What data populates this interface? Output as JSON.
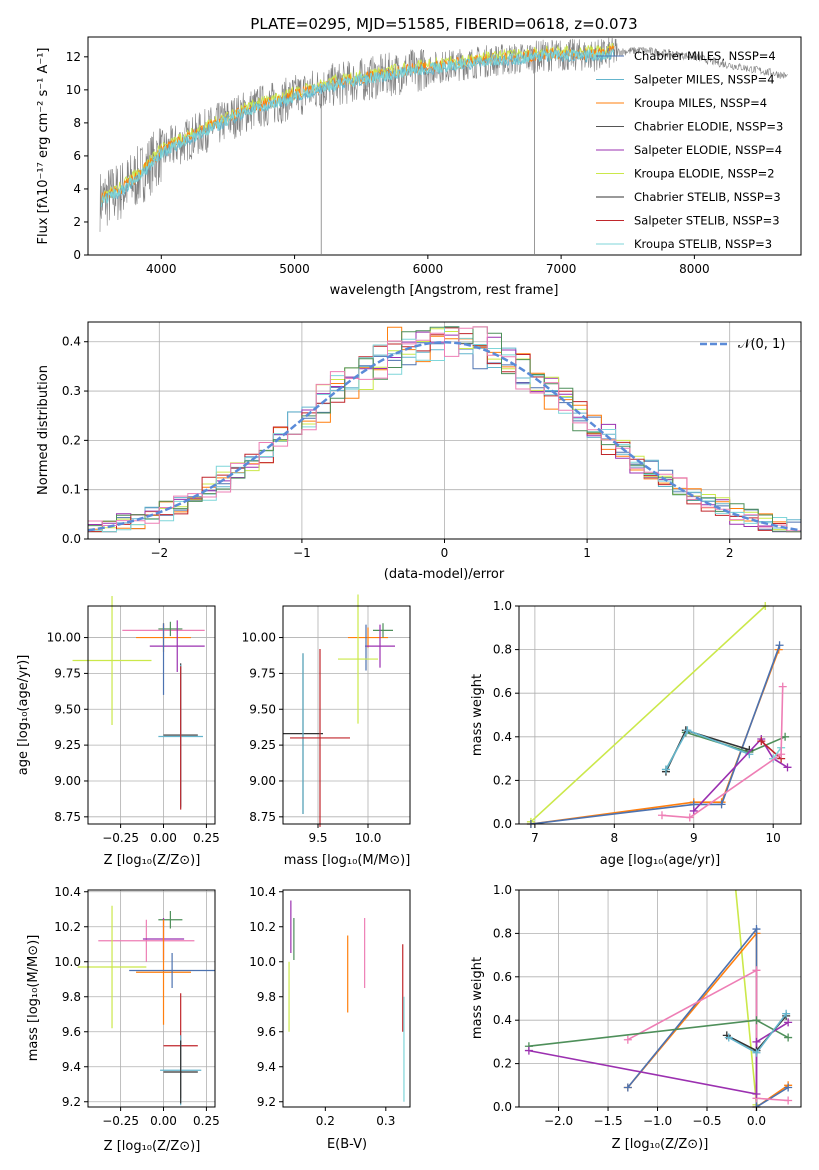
{
  "figure": {
    "title": "PLATE=0295, MJD=51585, FIBERID=0618, z=0.073"
  },
  "palette": {
    "Chabrier MILES": "#4c72b0",
    "Salpeter MILES": "#64b5cd",
    "Kroupa MILES": "#ff7f0e",
    "Chabrier ELODIE": "#555555",
    "Salpeter ELODIE": "#9b30b0",
    "Kroupa ELODIE": "#cbe84a",
    "Chabrier STELIB": "#333333",
    "Salpeter STELIB": "#c0262b",
    "Kroupa STELIB": "#7fd6d9",
    "green": "#4e8f5a",
    "pink": "#ee7eb5",
    "data_gray": "#808080",
    "normal_dash": "#5b8bd8"
  },
  "chart_data": [
    {
      "type": "line",
      "xlabel": "wavelength [Angstrom, rest frame]",
      "ylabel": "Flux [fλ10⁻¹⁷ erg cm⁻² s⁻¹ A⁻¹]",
      "xlim": [
        3450,
        8800
      ],
      "ylim": [
        0,
        13.2
      ],
      "xticks": [
        "4000",
        "5000",
        "6000",
        "7000",
        "8000"
      ],
      "yticks": [
        "0",
        "2",
        "4",
        "6",
        "8",
        "10",
        "12"
      ],
      "legend_position": "right",
      "legend": [
        "Chabrier MILES, NSSP=4",
        "Salpeter MILES, NSSP=4",
        "Kroupa MILES, NSSP=4",
        "Chabrier ELODIE, NSSP=3",
        "Salpeter ELODIE, NSSP=4",
        "Kroupa ELODIE, NSSP=2",
        "Chabrier STELIB, NSSP=3",
        "Salpeter STELIB, NSSP=3",
        "Kroupa STELIB, NSSP=3"
      ],
      "continuum_model": {
        "x": [
          3550,
          3700,
          3850,
          4000,
          4100,
          4300,
          4500,
          4700,
          4900,
          5100,
          5300,
          5500,
          5700,
          5900,
          6100,
          6300,
          6500,
          6700,
          6900,
          7100,
          7300,
          7420,
          7600,
          7800,
          8000,
          8200,
          8400,
          8600,
          8700
        ],
        "y": [
          3.3,
          3.9,
          4.9,
          6.2,
          6.6,
          7.4,
          8.2,
          8.9,
          9.3,
          9.9,
          10.3,
          10.6,
          10.9,
          11.2,
          11.4,
          11.6,
          11.8,
          11.9,
          12.1,
          12.1,
          12.1,
          12.3,
          12.4,
          12.2,
          12.0,
          11.6,
          11.3,
          11.0,
          10.8
        ]
      }
    },
    {
      "type": "histogram",
      "xlabel": "(data-model)/error",
      "ylabel": "Normed distribution",
      "xlim": [
        -2.5,
        2.5
      ],
      "ylim": [
        0,
        0.44
      ],
      "xticks": [
        "−2",
        "−1",
        "0",
        "1",
        "2"
      ],
      "yticks": [
        "0.0",
        "0.1",
        "0.2",
        "0.3",
        "0.4"
      ],
      "legend": [
        "𝒩(0, 1)"
      ],
      "legend_position": "top-right",
      "grid": true,
      "bin_edges_start": -2.5,
      "bin_width": 0.1,
      "normal": {
        "mu": 0,
        "sigma": 1
      }
    },
    {
      "type": "scatter",
      "xlabel": "Z [log₁₀(Z/Z⊙)]",
      "ylabel": "age  [log₁₀(age/yr)]",
      "xlim": [
        -0.44,
        0.3
      ],
      "ylim": [
        8.7,
        10.22
      ],
      "xticks": [
        -0.25,
        0.0,
        0.25
      ],
      "xtick_labels": [
        "−0.25",
        "0.00",
        "0.25"
      ],
      "yticks": [
        8.75,
        9.0,
        9.25,
        9.5,
        9.75,
        10.0
      ],
      "ytick_labels": [
        "8.75",
        "9.00",
        "9.25",
        "9.50",
        "9.75",
        "10.00"
      ],
      "grid": true,
      "points": [
        {
          "x": 0.0,
          "xerr": 0.24,
          "y": 10.05,
          "yerr": 0.04,
          "color": "pink"
        },
        {
          "x": 0.0,
          "xerr": 0.16,
          "y": 10.0,
          "yerr": 0.1,
          "color": "Kroupa MILES"
        },
        {
          "x": 0.04,
          "xerr": 0.07,
          "y": 10.06,
          "yerr": 0.05,
          "color": "green"
        },
        {
          "x": 0.08,
          "xerr": 0.16,
          "y": 9.94,
          "yerr": 0.18,
          "color": "Salpeter ELODIE"
        },
        {
          "x": 0.0,
          "xerr": 0.0,
          "y": 9.85,
          "yerr": 0.25,
          "color": "Chabrier MILES"
        },
        {
          "x": -0.3,
          "xerr": 0.23,
          "y": 9.84,
          "yerr": 0.45,
          "color": "Kroupa ELODIE"
        },
        {
          "x": 0.1,
          "xerr": 0.1,
          "y": 9.32,
          "yerr": 0.5,
          "color": "Chabrier STELIB"
        },
        {
          "x": 0.1,
          "xerr": 0.13,
          "y": 9.31,
          "yerr": 0.5,
          "color": "Salpeter MILES"
        },
        {
          "x": 0.1,
          "xerr": 0.0,
          "y": 9.3,
          "yerr": 0.5,
          "color": "Salpeter STELIB"
        }
      ]
    },
    {
      "type": "scatter",
      "xlabel": "mass [log₁₀(M/M⊙)]",
      "xlim": [
        9.15,
        10.42
      ],
      "ylim": [
        8.7,
        10.22
      ],
      "xticks": [
        9.5,
        10.0
      ],
      "xtick_labels": [
        "9.5",
        "10.0"
      ],
      "yticks": [
        8.75,
        9.0,
        9.25,
        9.5,
        9.75,
        10.0
      ],
      "ytick_labels": [
        "8.75",
        "9.00",
        "9.25",
        "9.50",
        "9.75",
        "10.00"
      ],
      "grid": true,
      "points": [
        {
          "x": 10.0,
          "xerr": 0.2,
          "y": 10.0,
          "yerr": 0.07,
          "color": "Kroupa MILES"
        },
        {
          "x": 10.15,
          "xerr": 0.1,
          "y": 10.05,
          "yerr": 0.05,
          "color": "green"
        },
        {
          "x": 10.12,
          "xerr": 0.15,
          "y": 9.94,
          "yerr": 0.15,
          "color": "Salpeter ELODIE"
        },
        {
          "x": 9.98,
          "xerr": 0.0,
          "y": 9.93,
          "yerr": 0.16,
          "color": "Chabrier MILES"
        },
        {
          "x": 9.9,
          "xerr": 0.2,
          "y": 9.85,
          "yerr": 0.45,
          "color": "Kroupa ELODIE"
        },
        {
          "x": 9.35,
          "xerr": 0.2,
          "y": 9.33,
          "yerr": 0.56,
          "color": "Chabrier STELIB"
        },
        {
          "x": 9.35,
          "xerr": 0.0,
          "y": 9.33,
          "yerr": 0.56,
          "color": "Salpeter MILES"
        },
        {
          "x": 9.52,
          "xerr": 0.3,
          "y": 9.3,
          "yerr": 0.62,
          "color": "Salpeter STELIB"
        }
      ]
    },
    {
      "type": "line",
      "xlabel": "age  [log₁₀(age/yr)]",
      "ylabel": "mass weight",
      "xlim": [
        6.8,
        10.35
      ],
      "ylim": [
        0,
        1
      ],
      "xticks": [
        7,
        8,
        9,
        10
      ],
      "xtick_labels": [
        "7",
        "8",
        "9",
        "10"
      ],
      "yticks": [
        0,
        0.2,
        0.4,
        0.6,
        0.8,
        1.0
      ],
      "ytick_labels": [
        "0.0",
        "0.2",
        "0.4",
        "0.6",
        "0.8",
        "1.0"
      ],
      "grid": true,
      "series": [
        {
          "color": "Kroupa ELODIE",
          "x": [
            6.95,
            9.9
          ],
          "y": [
            0.01,
            1.0
          ]
        },
        {
          "color": "Kroupa MILES",
          "x": [
            6.95,
            9.0,
            9.35,
            10.07
          ],
          "y": [
            0.0,
            0.1,
            0.1,
            0.8
          ]
        },
        {
          "color": "Chabrier MILES",
          "x": [
            6.95,
            9.0,
            9.35,
            10.08
          ],
          "y": [
            0.0,
            0.09,
            0.09,
            0.82
          ]
        },
        {
          "color": "green",
          "x": [
            8.65,
            8.9,
            9.7,
            10.15
          ],
          "y": [
            0.25,
            0.42,
            0.33,
            0.4
          ]
        },
        {
          "color": "Chabrier STELIB",
          "x": [
            8.65,
            8.9,
            9.7
          ],
          "y": [
            0.24,
            0.43,
            0.34
          ]
        },
        {
          "color": "Salpeter MILES",
          "x": [
            8.65,
            8.92,
            9.7
          ],
          "y": [
            0.25,
            0.43,
            0.32
          ]
        },
        {
          "color": "Salpeter ELODIE",
          "x": [
            9.0,
            9.85,
            10.0,
            10.18
          ],
          "y": [
            0.06,
            0.39,
            0.3,
            0.26
          ]
        },
        {
          "color": "Salpeter STELIB",
          "x": [
            9.85,
            10.1
          ],
          "y": [
            0.38,
            0.3
          ]
        },
        {
          "color": "Kroupa STELIB",
          "x": [
            10.0,
            10.1
          ],
          "y": [
            0.3,
            0.35
          ]
        },
        {
          "color": "pink",
          "x": [
            8.6,
            8.95,
            10.1,
            10.12
          ],
          "y": [
            0.04,
            0.03,
            0.32,
            0.63
          ]
        }
      ]
    },
    {
      "type": "scatter",
      "xlabel": "Z [log₁₀(Z/Z⊙)]",
      "ylabel": "mass [log₁₀(M/M⊙)]",
      "xlim": [
        -0.44,
        0.3
      ],
      "ylim": [
        9.17,
        10.41
      ],
      "xticks": [
        -0.25,
        0.0,
        0.25
      ],
      "xtick_labels": [
        "−0.25",
        "0.00",
        "0.25"
      ],
      "yticks": [
        9.2,
        9.4,
        9.6,
        9.8,
        10.0,
        10.2,
        10.4
      ],
      "ytick_labels": [
        "9.2",
        "9.4",
        "9.6",
        "9.8",
        "10.0",
        "10.2",
        "10.4"
      ],
      "grid": true,
      "points": [
        {
          "x": 0.04,
          "xerr": 0.07,
          "y": 10.24,
          "yerr": 0.05,
          "color": "green"
        },
        {
          "x": -0.1,
          "xerr": 0.28,
          "y": 10.12,
          "yerr": 0.12,
          "color": "pink"
        },
        {
          "x": 0.0,
          "xerr": 0.12,
          "y": 10.13,
          "yerr": 0.12,
          "color": "Salpeter ELODIE"
        },
        {
          "x": -0.3,
          "xerr": 0.2,
          "y": 9.97,
          "yerr": 0.35,
          "color": "Kroupa ELODIE"
        },
        {
          "x": 0.0,
          "xerr": 0.16,
          "y": 9.94,
          "yerr": 0.3,
          "color": "Kroupa MILES"
        },
        {
          "x": 0.05,
          "xerr": 0.25,
          "y": 9.95,
          "yerr": 0.1,
          "color": "Chabrier MILES"
        },
        {
          "x": 0.1,
          "xerr": 0.1,
          "y": 9.52,
          "yerr": 0.3,
          "color": "Salpeter STELIB"
        },
        {
          "x": 0.1,
          "xerr": 0.12,
          "y": 9.38,
          "yerr": 0.2,
          "color": "Salpeter MILES"
        },
        {
          "x": 0.1,
          "xerr": 0.1,
          "y": 9.37,
          "yerr": 0.18,
          "color": "Chabrier STELIB"
        }
      ]
    },
    {
      "type": "scatter",
      "xlabel": "E(B-V)",
      "xlim": [
        0.13,
        0.34
      ],
      "ylim": [
        9.17,
        10.41
      ],
      "xticks": [
        0.2,
        0.3
      ],
      "xtick_labels": [
        "0.2",
        "0.3"
      ],
      "yticks": [
        9.2,
        9.4,
        9.6,
        9.8,
        10.0,
        10.2,
        10.4
      ],
      "ytick_labels": [
        "9.2",
        "9.4",
        "9.6",
        "9.8",
        "10.0",
        "10.2",
        "10.4"
      ],
      "grid": false,
      "points": [
        {
          "x": 0.143,
          "y": 10.2,
          "yerr": 0.15,
          "color": "Salpeter ELODIE"
        },
        {
          "x": 0.148,
          "y": 10.13,
          "yerr": 0.12,
          "color": "green"
        },
        {
          "x": 0.14,
          "y": 9.8,
          "yerr": 0.2,
          "color": "Kroupa ELODIE"
        },
        {
          "x": 0.237,
          "y": 9.93,
          "yerr": 0.22,
          "color": "Kroupa MILES"
        },
        {
          "x": 0.265,
          "y": 10.05,
          "yerr": 0.2,
          "color": "pink"
        },
        {
          "x": 0.328,
          "y": 9.85,
          "yerr": 0.25,
          "color": "Salpeter STELIB"
        },
        {
          "x": 0.33,
          "y": 9.5,
          "yerr": 0.3,
          "color": "Kroupa STELIB"
        }
      ]
    },
    {
      "type": "line",
      "xlabel": "Z [log₁₀(Z/Z⊙)]",
      "ylabel": "mass weight",
      "xlim": [
        -2.4,
        0.45
      ],
      "ylim": [
        0,
        1
      ],
      "xticks": [
        -2.0,
        -1.5,
        -1.0,
        -0.5,
        0.0
      ],
      "xtick_labels": [
        "−2.0",
        "−1.5",
        "−1.0",
        "−0.5",
        "0.0"
      ],
      "yticks": [
        0,
        0.2,
        0.4,
        0.6,
        0.8,
        1.0
      ],
      "ytick_labels": [
        "0.0",
        "0.2",
        "0.4",
        "0.6",
        "0.8",
        "1.0"
      ],
      "grid": true,
      "series": [
        {
          "color": "Kroupa ELODIE",
          "x": [
            -0.22,
            0.0
          ],
          "y": [
            1.05,
            0.01
          ]
        },
        {
          "color": "Kroupa MILES",
          "x": [
            -1.3,
            0.0,
            0.0,
            0.32
          ],
          "y": [
            0.09,
            0.8,
            0.0,
            0.1
          ]
        },
        {
          "color": "Chabrier MILES",
          "x": [
            -1.3,
            0.0,
            0.0,
            0.32
          ],
          "y": [
            0.09,
            0.82,
            0.0,
            0.09
          ]
        },
        {
          "color": "pink",
          "x": [
            -1.3,
            0.0,
            0.0,
            0.32
          ],
          "y": [
            0.31,
            0.63,
            0.04,
            0.03
          ]
        },
        {
          "color": "green",
          "x": [
            -2.3,
            0.0,
            0.32
          ],
          "y": [
            0.28,
            0.4,
            0.32
          ]
        },
        {
          "color": "Salpeter ELODIE",
          "x": [
            -2.3,
            0.0,
            0.0,
            0.32
          ],
          "y": [
            0.26,
            0.06,
            0.3,
            0.39
          ]
        },
        {
          "color": "Chabrier STELIB",
          "x": [
            -0.3,
            0.0,
            0.3
          ],
          "y": [
            0.33,
            0.26,
            0.42
          ]
        },
        {
          "color": "Salpeter MILES",
          "x": [
            -0.28,
            0.0,
            0.3
          ],
          "y": [
            0.32,
            0.25,
            0.43
          ]
        }
      ]
    }
  ]
}
